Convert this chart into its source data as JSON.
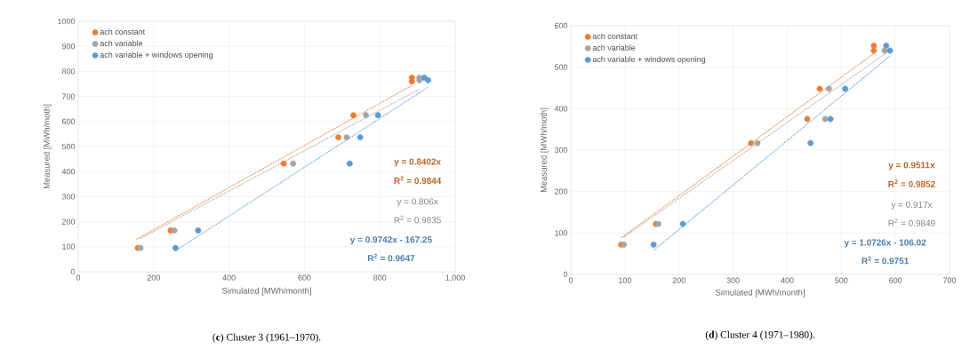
{
  "chart_data": [
    {
      "type": "scatter",
      "title": "(**c**) Cluster 3 (1961–1970).",
      "xlabel": "Simulated [MWh/month]",
      "ylabel": "Measured [MWh/moth]",
      "xlim": [
        0,
        1000
      ],
      "ylim": [
        0,
        1000
      ],
      "xticks": [
        0,
        200,
        400,
        600,
        800,
        {
          "value": 1000,
          "label": "1,000"
        }
      ],
      "yticks": [
        0,
        100,
        200,
        300,
        400,
        500,
        600,
        700,
        800,
        900,
        1000
      ],
      "grid": true,
      "legend": "top left",
      "marker": "circle",
      "series": [
        {
          "name": "ach constant",
          "color": "#ed7d31",
          "x": [
            158,
            245,
            545,
            690,
            730,
            885,
            885
          ],
          "values": [
            95,
            165,
            432,
            537,
            625,
            760,
            775
          ]
        },
        {
          "name": "ach variable",
          "color": "#a5a5a5",
          "x": [
            165,
            255,
            570,
            712,
            763,
            905,
            905
          ],
          "values": [
            95,
            165,
            432,
            537,
            625,
            765,
            775
          ]
        },
        {
          "name": "ach variable +  windows opening",
          "color": "#5b9bd5",
          "x": [
            258,
            318,
            720,
            748,
            795,
            918,
            928
          ],
          "values": [
            95,
            165,
            432,
            537,
            625,
            775,
            765
          ]
        },
        {
          "type": "line",
          "color": "#ed7d31",
          "line_style": "dotted",
          "marker": "none",
          "x": [
            155,
            885
          ],
          "values": [
            130,
            744
          ]
        },
        {
          "type": "line",
          "color": "#a5a5a5",
          "line_style": "dotted",
          "marker": "none",
          "x": [
            165,
            905
          ],
          "values": [
            133,
            729
          ]
        },
        {
          "type": "line",
          "color": "#5b9bd5",
          "line_style": "dotted",
          "marker": "none",
          "x": [
            258,
            928
          ],
          "values": [
            84,
            737
          ]
        }
      ],
      "annotations": [
        "y = 0.8402x",
        "R$^{2}$ = 0.9844",
        "y = 0.806x",
        "R$^{2}$ = 0.9835",
        "y = 0.9742x - 167.25",
        "R$^{2}$ = 0.9647"
      ]
    },
    {
      "type": "scatter",
      "title": "(**d**) Cluster 4 (1971–1980).",
      "xlabel": "Simulated [MWh/month]",
      "ylabel": "Measured [MWh/moth]",
      "xlim": [
        0,
        700
      ],
      "ylim": [
        0,
        600
      ],
      "xticks": [
        0,
        100,
        200,
        300,
        400,
        500,
        600,
        700
      ],
      "yticks": [
        0,
        100,
        200,
        300,
        400,
        500,
        600
      ],
      "grid": true,
      "legend": "top left",
      "marker": "circle",
      "series": [
        {
          "name": "ach constant",
          "color": "#ed7d31",
          "x": [
            93,
            157,
            333,
            437,
            460,
            560,
            560
          ],
          "values": [
            72,
            122,
            317,
            375,
            448,
            540,
            552
          ]
        },
        {
          "name": "ach variable",
          "color": "#a5a5a5",
          "x": [
            98,
            162,
            345,
            470,
            477,
            580
          ],
          "values": [
            72,
            122,
            317,
            375,
            448,
            540
          ]
        },
        {
          "name": "ach variable +  windows opening",
          "color": "#5b9bd5",
          "x": [
            153,
            207,
            443,
            480,
            507,
            583,
            590
          ],
          "values": [
            72,
            122,
            317,
            375,
            448,
            552,
            540
          ]
        },
        {
          "type": "line",
          "color": "#ed7d31",
          "line_style": "dotted",
          "marker": "none",
          "x": [
            93,
            560
          ],
          "values": [
            88,
            533
          ]
        },
        {
          "type": "line",
          "color": "#a5a5a5",
          "line_style": "dotted",
          "marker": "none",
          "x": [
            98,
            585
          ],
          "values": [
            90,
            536
          ]
        },
        {
          "type": "line",
          "color": "#5b9bd5",
          "line_style": "dotted",
          "marker": "none",
          "x": [
            153,
            590
          ],
          "values": [
            58,
            527
          ]
        }
      ],
      "annotations": [
        "y = 0.9511x",
        "R$^{2}$ = 0.9852",
        "y = 0.917x",
        "R$^{2}$ = 0.9849",
        "y = 1.0726x - 106.02",
        "R$^{2}$ = 0.9751"
      ]
    }
  ]
}
